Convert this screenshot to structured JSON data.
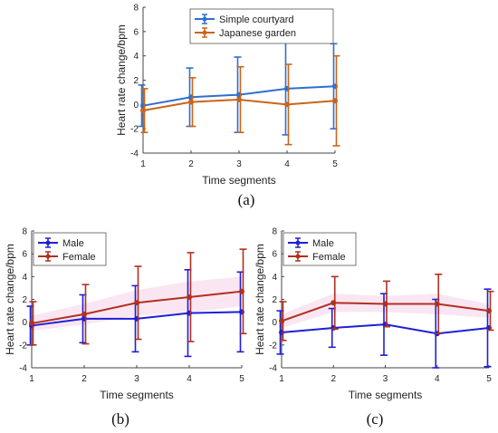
{
  "chart_data": [
    {
      "type": "line",
      "caption": "(a)",
      "xlabel": "Time segments",
      "ylabel": "Heart rate change/bpm",
      "x": [
        1,
        2,
        3,
        4,
        5
      ],
      "xlim": [
        1,
        5
      ],
      "ylim": [
        -4,
        8
      ],
      "xticks": [
        "1",
        "2",
        "3",
        "4",
        "5"
      ],
      "yticks": [
        "-4",
        "-2",
        "0",
        "2",
        "4",
        "6",
        "8"
      ],
      "grid": false,
      "legend": "top-right",
      "series": [
        {
          "name": "Simple courtyard",
          "color": "#2e6fd1",
          "values": [
            -0.1,
            0.6,
            0.8,
            1.3,
            1.5
          ],
          "err": [
            1.7,
            2.4,
            3.1,
            3.8,
            3.5
          ]
        },
        {
          "name": "Japanese garden",
          "color": "#c9651a",
          "values": [
            -0.5,
            0.2,
            0.4,
            0.0,
            0.3
          ],
          "err": [
            1.8,
            2.0,
            2.7,
            3.3,
            3.7
          ]
        }
      ]
    },
    {
      "type": "line",
      "caption": "(b)",
      "xlabel": "Time segments",
      "ylabel": "Heart rate change/bpm",
      "x": [
        1,
        2,
        3,
        4,
        5
      ],
      "xlim": [
        1,
        5
      ],
      "ylim": [
        -4,
        8
      ],
      "xticks": [
        "1",
        "2",
        "3",
        "4",
        "5"
      ],
      "yticks": [
        "-4",
        "-2",
        "0",
        "2",
        "4",
        "6",
        "8"
      ],
      "grid": false,
      "legend": "top-left",
      "series": [
        {
          "name": "Male",
          "color": "#1f1fd6",
          "values": [
            -0.3,
            0.3,
            0.3,
            0.8,
            0.9
          ],
          "err": [
            1.7,
            2.1,
            2.9,
            3.8,
            3.5
          ]
        },
        {
          "name": "Female",
          "color": "#b03020",
          "values": [
            -0.1,
            0.7,
            1.7,
            2.2,
            2.7
          ],
          "err": [
            1.9,
            2.6,
            3.2,
            3.9,
            3.7
          ]
        }
      ]
    },
    {
      "type": "line",
      "caption": "(c)",
      "xlabel": "Time segments",
      "ylabel": "Heart rate change/bpm",
      "x": [
        1,
        2,
        3,
        4,
        5
      ],
      "xlim": [
        1,
        5
      ],
      "ylim": [
        -4,
        8
      ],
      "xticks": [
        "1",
        "2",
        "3",
        "4",
        "5"
      ],
      "yticks": [
        "-4",
        "-2",
        "0",
        "2",
        "4",
        "6",
        "8"
      ],
      "grid": false,
      "legend": "top-left",
      "series": [
        {
          "name": "Male",
          "color": "#1f1fd6",
          "values": [
            -0.9,
            -0.5,
            -0.2,
            -1.0,
            -0.5
          ],
          "err": [
            1.9,
            1.7,
            2.7,
            3.0,
            3.4
          ]
        },
        {
          "name": "Female",
          "color": "#b03020",
          "values": [
            0.1,
            1.7,
            1.6,
            1.6,
            1.0
          ],
          "err": [
            1.7,
            2.3,
            2.0,
            2.6,
            1.7
          ]
        }
      ]
    }
  ]
}
